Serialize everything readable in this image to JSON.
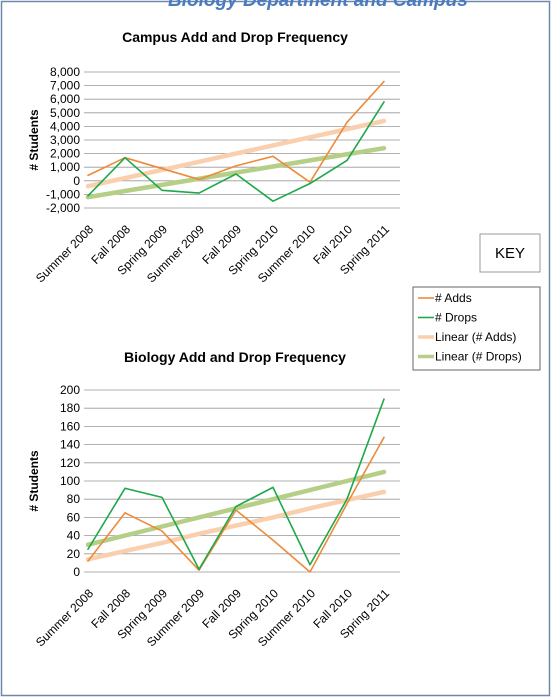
{
  "header": {
    "title": "Biology Department and Campus"
  },
  "legend": {
    "title": "KEY"
  },
  "chart_data": [
    {
      "type": "line",
      "title": "Campus Add  and Drop Frequency",
      "y_label": "# Students",
      "categories": [
        "Summer 2008",
        "Fall 2008",
        "Spring 2009",
        "Summer 2009",
        "Fall 2009",
        "Spring  2010",
        "Summer 2010",
        "Fall 2010",
        "Spring 2011"
      ],
      "series": [
        {
          "name": "# Adds",
          "color": "#ed8b3a",
          "width": 1.6,
          "values": [
            400,
            1700,
            900,
            100,
            1100,
            1800,
            -100,
            4300,
            7300
          ]
        },
        {
          "name": "# Drops",
          "color": "#1fa84a",
          "width": 1.6,
          "values": [
            -1100,
            1700,
            -700,
            -900,
            500,
            -1500,
            -200,
            1500,
            5800
          ]
        },
        {
          "name": "Linear (# Adds)",
          "color": "#f9cfae",
          "width": 4.5,
          "values": [
            -400,
            200,
            800,
            1400,
            2000,
            2600,
            3200,
            3800,
            4400
          ]
        },
        {
          "name": "Linear (# Drops)",
          "color": "#b5cf86",
          "width": 4.5,
          "values": [
            -1200,
            -750,
            -300,
            150,
            600,
            1050,
            1500,
            1950,
            2400
          ]
        }
      ],
      "ylim": [
        -2000,
        8000
      ],
      "yticks": [
        {
          "value": -2000,
          "label": "-2,000"
        },
        {
          "value": -1000,
          "label": "-1,000"
        },
        0,
        {
          "value": 1000,
          "label": "1,000"
        },
        {
          "value": 2000,
          "label": "2,000"
        },
        {
          "value": 3000,
          "label": "3,000"
        },
        {
          "value": 4000,
          "label": "4,000"
        },
        {
          "value": 5000,
          "label": "5,000"
        },
        {
          "value": 6000,
          "label": "6,000"
        },
        {
          "value": 7000,
          "label": "7,000"
        },
        {
          "value": 8000,
          "label": "8,000"
        }
      ],
      "grid": true
    },
    {
      "type": "line",
      "title": "Biology Add  and Drop Frequency",
      "y_label": "# Students",
      "categories": [
        "Summer 2008",
        "Fall 2008",
        "Spring 2009",
        "Summer 2009",
        "Fall 2009",
        "Spring  2010",
        "Summer 2010",
        "Fall 2010",
        "Spring 2011"
      ],
      "series": [
        {
          "color": "#ed8b3a",
          "width": 1.6,
          "values": [
            12,
            65,
            45,
            2,
            68,
            35,
            0,
            75,
            148
          ]
        },
        {
          "color": "#1fa84a",
          "width": 1.6,
          "values": [
            25,
            92,
            82,
            3,
            72,
            93,
            8,
            80,
            190
          ]
        },
        {
          "color": "#f9cfae",
          "width": 4.5,
          "values": [
            14,
            23,
            32,
            42,
            51,
            60,
            70,
            79,
            88
          ]
        },
        {
          "color": "#b5cf86",
          "width": 4.5,
          "values": [
            30,
            40,
            50,
            60,
            70,
            80,
            90,
            100,
            110
          ]
        }
      ],
      "ylim": [
        0,
        200
      ],
      "yticks": [
        0,
        20,
        40,
        60,
        80,
        100,
        120,
        140,
        160,
        180,
        200
      ],
      "grid": true
    }
  ]
}
